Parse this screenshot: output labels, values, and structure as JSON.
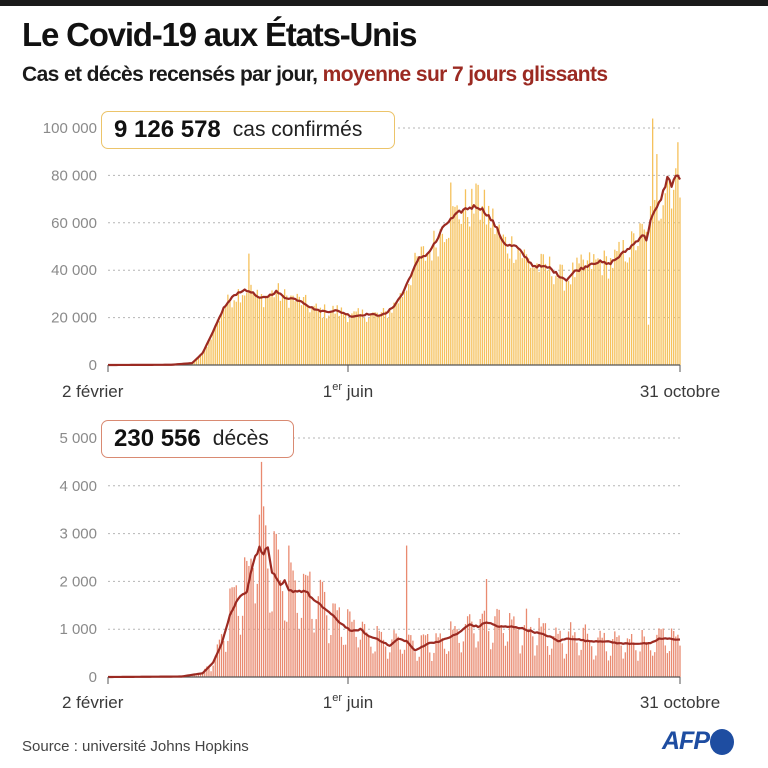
{
  "header": {
    "title": "Le Covid-19 aux États-Unis",
    "subtitle_main": "Cas et décès recensés par jour, ",
    "subtitle_accent": "moyenne sur 7 jours glissants"
  },
  "footer": {
    "source": "Source : université Johns Hopkins",
    "logo": "AFP"
  },
  "colors": {
    "cases_bar": "#f5c15c",
    "deaths_bar": "#e98a70",
    "average_line": "#9b2a22",
    "cases_box_border": "#ecc46a",
    "deaths_box_border": "#d98a72",
    "grid": "#b5b5b5",
    "afp_blue": "#1e4da1"
  },
  "chart_data": [
    {
      "type": "bar",
      "title": "cas confirmés",
      "total_label": "9 126 578",
      "total_caption": "cas confirmés",
      "xlabel": "",
      "ylabel": "",
      "x_start": "2 février",
      "x_end": "31 octobre",
      "x_ticks": [
        {
          "day": 0,
          "label": "2 février"
        },
        {
          "day": 120,
          "label": "1er juin",
          "sup": "er",
          "base": "1",
          "rest": " juin"
        },
        {
          "day": 272,
          "label": "31 octobre"
        }
      ],
      "ylim": [
        0,
        100000
      ],
      "y_ticks": [
        {
          "value": 0,
          "label": "0"
        },
        {
          "value": 20000,
          "label": "20 000"
        },
        {
          "value": 40000,
          "label": "40 000"
        },
        {
          "value": 60000,
          "label": "60 000"
        },
        {
          "value": 80000,
          "label": "80 000"
        },
        {
          "value": 100000,
          "label": "100 000"
        }
      ],
      "grid": true,
      "series": [
        {
          "name": "cas quotidiens",
          "kind": "bar"
        },
        {
          "name": "moyenne sur 7 jours glissants",
          "kind": "line"
        }
      ],
      "average_anchors": [
        [
          0,
          0
        ],
        [
          30,
          100
        ],
        [
          40,
          800
        ],
        [
          45,
          5000
        ],
        [
          50,
          14000
        ],
        [
          55,
          24000
        ],
        [
          60,
          29500
        ],
        [
          64,
          31500
        ],
        [
          68,
          31000
        ],
        [
          72,
          28000
        ],
        [
          76,
          29000
        ],
        [
          80,
          31000
        ],
        [
          84,
          28500
        ],
        [
          88,
          28000
        ],
        [
          92,
          27000
        ],
        [
          96,
          24500
        ],
        [
          100,
          23000
        ],
        [
          104,
          22500
        ],
        [
          108,
          23000
        ],
        [
          112,
          22000
        ],
        [
          116,
          20500
        ],
        [
          120,
          21000
        ],
        [
          124,
          21500
        ],
        [
          128,
          21000
        ],
        [
          132,
          21500
        ],
        [
          136,
          25000
        ],
        [
          140,
          30000
        ],
        [
          144,
          38000
        ],
        [
          148,
          45000
        ],
        [
          152,
          47000
        ],
        [
          156,
          52000
        ],
        [
          160,
          59000
        ],
        [
          164,
          62000
        ],
        [
          168,
          65000
        ],
        [
          172,
          66500
        ],
        [
          176,
          67000
        ],
        [
          180,
          64000
        ],
        [
          184,
          59000
        ],
        [
          188,
          52000
        ],
        [
          190,
          50500
        ],
        [
          194,
          50000
        ],
        [
          198,
          46000
        ],
        [
          202,
          42000
        ],
        [
          206,
          41500
        ],
        [
          210,
          41000
        ],
        [
          214,
          38000
        ],
        [
          218,
          36000
        ],
        [
          222,
          39500
        ],
        [
          226,
          41000
        ],
        [
          230,
          43000
        ],
        [
          234,
          43500
        ],
        [
          238,
          42500
        ],
        [
          242,
          45000
        ],
        [
          246,
          48000
        ],
        [
          250,
          51000
        ],
        [
          254,
          55000
        ],
        [
          256,
          53000
        ],
        [
          258,
          61000
        ],
        [
          262,
          68000
        ],
        [
          264,
          73000
        ],
        [
          266,
          79000
        ],
        [
          268,
          76000
        ],
        [
          270,
          80000
        ],
        [
          272,
          78000
        ]
      ],
      "spike_days": [
        [
          67,
          47000
        ],
        [
          163,
          77000
        ],
        [
          176,
          76000
        ],
        [
          259,
          104000
        ],
        [
          261,
          89000
        ],
        [
          271,
          94000
        ],
        [
          257,
          17000
        ]
      ]
    },
    {
      "type": "bar",
      "title": "décès",
      "total_label": "230 556",
      "total_caption": "décès",
      "xlabel": "",
      "ylabel": "",
      "x_start": "2 février",
      "x_end": "31 octobre",
      "x_ticks": [
        {
          "day": 0,
          "label": "2 février"
        },
        {
          "day": 120,
          "label": "1er juin",
          "sup": "er",
          "base": "1",
          "rest": " juin"
        },
        {
          "day": 272,
          "label": "31 octobre"
        }
      ],
      "ylim": [
        0,
        5000
      ],
      "y_ticks": [
        {
          "value": 0,
          "label": "0"
        },
        {
          "value": 1000,
          "label": "1 000"
        },
        {
          "value": 2000,
          "label": "2 000"
        },
        {
          "value": 3000,
          "label": "3 000"
        },
        {
          "value": 4000,
          "label": "4 000"
        },
        {
          "value": 5000,
          "label": "5 000"
        }
      ],
      "grid": true,
      "series": [
        {
          "name": "décès quotidiens",
          "kind": "bar"
        },
        {
          "name": "moyenne sur 7 jours glissants",
          "kind": "line"
        }
      ],
      "average_anchors": [
        [
          0,
          0
        ],
        [
          35,
          10
        ],
        [
          45,
          80
        ],
        [
          50,
          300
        ],
        [
          54,
          700
        ],
        [
          58,
          1300
        ],
        [
          62,
          1650
        ],
        [
          66,
          1800
        ],
        [
          69,
          2400
        ],
        [
          72,
          2700
        ],
        [
          74,
          2600
        ],
        [
          76,
          2700
        ],
        [
          78,
          2200
        ],
        [
          82,
          1900
        ],
        [
          84,
          2000
        ],
        [
          86,
          1800
        ],
        [
          90,
          1800
        ],
        [
          94,
          1800
        ],
        [
          98,
          1600
        ],
        [
          104,
          1400
        ],
        [
          110,
          1150
        ],
        [
          116,
          950
        ],
        [
          120,
          1000
        ],
        [
          124,
          850
        ],
        [
          128,
          800
        ],
        [
          134,
          650
        ],
        [
          138,
          800
        ],
        [
          142,
          750
        ],
        [
          146,
          550
        ],
        [
          152,
          700
        ],
        [
          158,
          750
        ],
        [
          166,
          900
        ],
        [
          172,
          1100
        ],
        [
          176,
          1050
        ],
        [
          180,
          1150
        ],
        [
          186,
          1050
        ],
        [
          194,
          1050
        ],
        [
          202,
          950
        ],
        [
          210,
          850
        ],
        [
          214,
          750
        ],
        [
          218,
          800
        ],
        [
          222,
          800
        ],
        [
          228,
          750
        ],
        [
          236,
          750
        ],
        [
          244,
          700
        ],
        [
          250,
          700
        ],
        [
          258,
          700
        ],
        [
          262,
          800
        ],
        [
          268,
          800
        ],
        [
          272,
          780
        ]
      ],
      "spike_days": [
        [
          73,
          4500
        ],
        [
          79,
          3050
        ],
        [
          86,
          2750
        ],
        [
          142,
          2750
        ],
        [
          180,
          2050
        ]
      ]
    }
  ]
}
